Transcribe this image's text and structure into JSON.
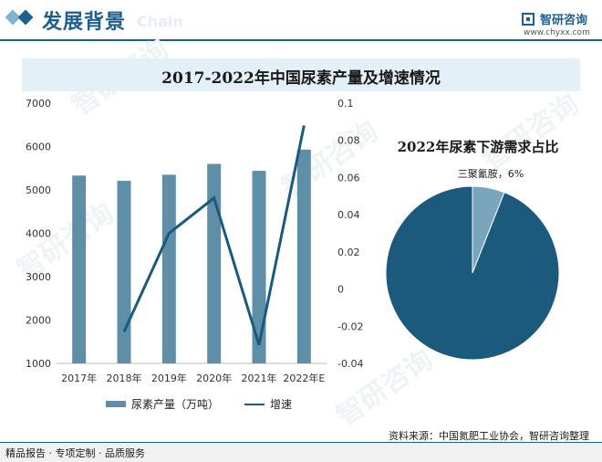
{
  "header": {
    "section_title": "发展背景",
    "section_title_en": "Chain",
    "brand_name": "智研咨询",
    "brand_url": "www.chyxx.com",
    "accent_color": "#1f5f8b"
  },
  "watermark_text": "智研咨询",
  "chart_data": [
    {
      "type": "bar",
      "title": "2017-2022年中国尿素产量及增速情况",
      "categories": [
        "2017年",
        "2018年",
        "2019年",
        "2020年",
        "2021年",
        "2022年E"
      ],
      "series": [
        {
          "name": "尿素产量（万吨）",
          "type": "bar",
          "axis": "left",
          "color": "#5f8fa7",
          "values": [
            5330,
            5210,
            5350,
            5600,
            5440,
            5930
          ]
        },
        {
          "name": "增速",
          "type": "line",
          "axis": "right",
          "color": "#1b5a7d",
          "values": [
            null,
            -0.023,
            0.03,
            0.049,
            -0.03,
            0.088
          ]
        }
      ],
      "ylim_left": [
        1000,
        7000
      ],
      "yticks_left": [
        "1000",
        "2000",
        "3000",
        "4000",
        "5000",
        "6000",
        "7000"
      ],
      "ylim_right": [
        -0.04,
        0.1
      ],
      "yticks_right": [
        "-0.04",
        "-0.02",
        "0",
        "0.02",
        "0.04",
        "0.06",
        "0.08",
        "0.1"
      ],
      "grid": false,
      "legend": "bottom"
    },
    {
      "type": "pie",
      "title": "2022年尿素下游需求占比",
      "slices": [
        {
          "label": "三聚氰胺，6%",
          "value": 6,
          "color": "#7aa6bd"
        },
        {
          "label": "",
          "value": 94,
          "color": "#1b5a7d"
        }
      ]
    }
  ],
  "footer": {
    "source": "资料来源：中国氮肥工业协会，智研咨询整理",
    "slogan": "精品报告 · 专项定制 · 品质服务"
  }
}
